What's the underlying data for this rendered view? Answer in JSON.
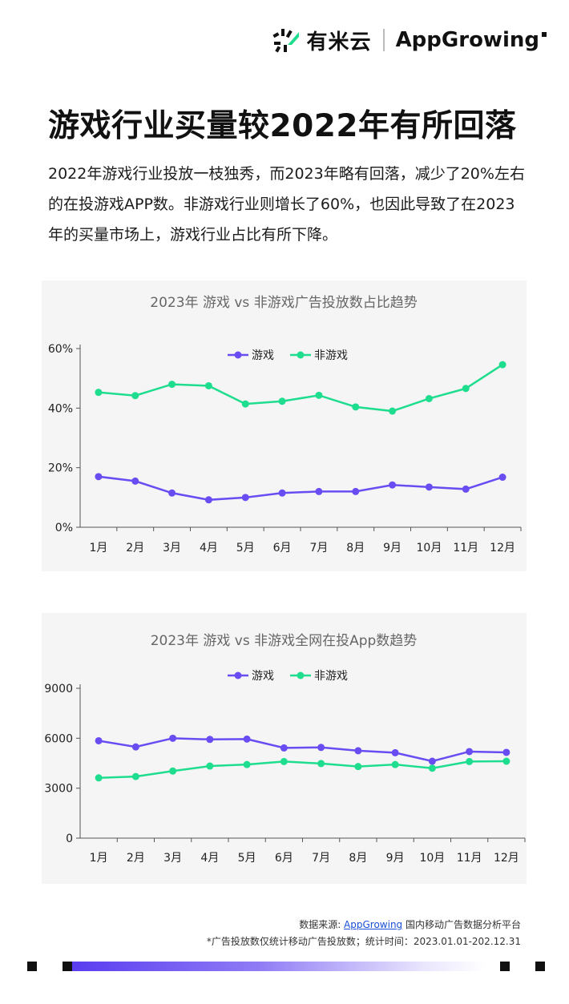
{
  "header": {
    "brand1": "有米云",
    "brand2": "AppGrowing"
  },
  "title": "游戏行业买量较2022年有所回落",
  "description": "2022年游戏行业投放一枝独秀，而2023年略有回落，减少了20%左右的在投游戏APP数。非游戏行业则增长了60%，也因此导致了在2023年的买量市场上，游戏行业占比有所下降。",
  "colors": {
    "game": "#6a4cf3",
    "nongame": "#1fdd8e",
    "axis": "#333333"
  },
  "chart_data": [
    {
      "type": "line",
      "title": "2023年 游戏 vs 非游戏广告投放数占比趋势",
      "categories": [
        "1月",
        "2月",
        "3月",
        "4月",
        "5月",
        "6月",
        "7月",
        "8月",
        "9月",
        "10月",
        "11月",
        "12月"
      ],
      "series": [
        {
          "name": "游戏",
          "values": [
            17,
            15.5,
            11.5,
            9.2,
            10,
            11.5,
            12,
            12,
            14.2,
            13.5,
            12.8,
            16.8
          ]
        },
        {
          "name": "非游戏",
          "values": [
            45.3,
            44.2,
            48,
            47.5,
            41.4,
            42.3,
            44.3,
            40.4,
            39,
            43.2,
            46.6,
            54.6
          ]
        }
      ],
      "yticks": [
        0,
        20,
        40,
        60
      ],
      "ytick_labels": [
        "0%",
        "20%",
        "40%",
        "60%"
      ],
      "ylim": [
        0,
        60
      ],
      "legend": "top-center"
    },
    {
      "type": "line",
      "title": "2023年 游戏 vs 非游戏全网在投App数趋势",
      "categories": [
        "1月",
        "2月",
        "3月",
        "4月",
        "5月",
        "6月",
        "7月",
        "8月",
        "9月",
        "10月",
        "11月",
        "12月"
      ],
      "series": [
        {
          "name": "游戏",
          "values": [
            5850,
            5480,
            6000,
            5930,
            5950,
            5420,
            5450,
            5250,
            5130,
            4620,
            5200,
            5150
          ]
        },
        {
          "name": "非游戏",
          "values": [
            3620,
            3700,
            4030,
            4330,
            4420,
            4600,
            4480,
            4300,
            4420,
            4200,
            4600,
            4620
          ]
        }
      ],
      "yticks": [
        0,
        3000,
        6000,
        9000
      ],
      "ytick_labels": [
        "0",
        "3000",
        "6000",
        "9000"
      ],
      "ylim": [
        0,
        9000
      ],
      "legend": "top-center"
    }
  ],
  "footer": {
    "source_prefix": "数据来源: ",
    "source_link": "AppGrowing",
    "source_suffix": " 国内移动广告数据分析平台",
    "note": "*广告投放数仅统计移动广告投放数；统计时间：2023.01.01-202.12.31"
  }
}
